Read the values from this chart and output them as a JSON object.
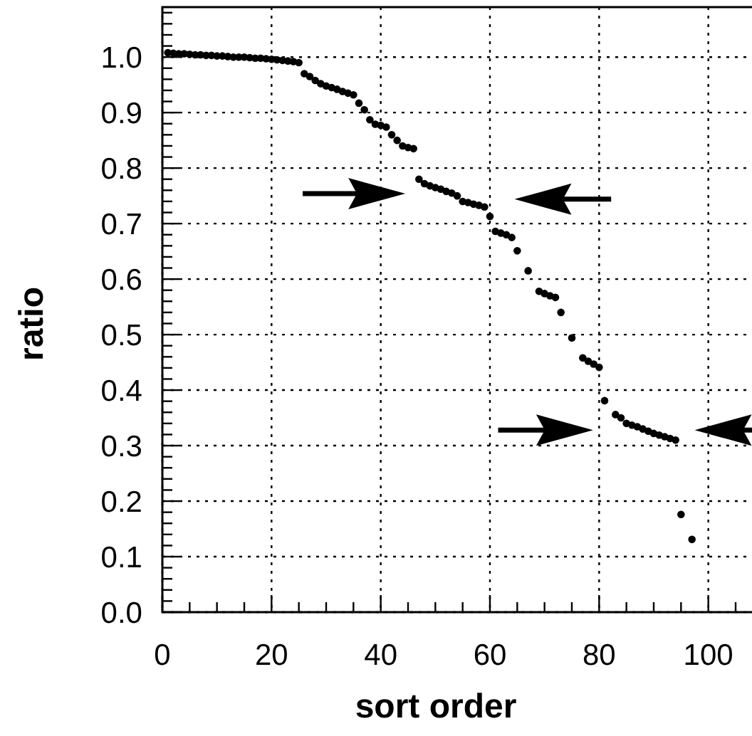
{
  "chart_data": {
    "type": "scatter",
    "xlabel": "sort order",
    "ylabel": "ratio",
    "marker": "circle",
    "grid": true,
    "xlim": [
      0,
      108
    ],
    "ylim": [
      0,
      1.09
    ],
    "xticks": [
      0,
      {
        "value": 5,
        "label": null
      },
      {
        "value": 10,
        "label": null
      },
      {
        "value": 15,
        "label": null
      },
      20,
      {
        "value": 25,
        "label": null
      },
      {
        "value": 30,
        "label": null
      },
      {
        "value": 35,
        "label": null
      },
      40,
      {
        "value": 45,
        "label": null
      },
      {
        "value": 50,
        "label": null
      },
      {
        "value": 55,
        "label": null
      },
      60,
      {
        "value": 65,
        "label": null
      },
      {
        "value": 70,
        "label": null
      },
      {
        "value": 75,
        "label": null
      },
      80,
      {
        "value": 85,
        "label": null
      },
      {
        "value": 90,
        "label": null
      },
      {
        "value": 95,
        "label": null
      },
      100,
      {
        "value": 105,
        "label": null
      }
    ],
    "yticks": [
      {
        "value": 0,
        "label": "0.0"
      },
      {
        "value": 0.02,
        "label": null
      },
      {
        "value": 0.04,
        "label": null
      },
      {
        "value": 0.06,
        "label": null
      },
      {
        "value": 0.08,
        "label": null
      },
      0.1,
      {
        "value": 0.12,
        "label": null
      },
      {
        "value": 0.14,
        "label": null
      },
      {
        "value": 0.16,
        "label": null
      },
      {
        "value": 0.18,
        "label": null
      },
      0.2,
      {
        "value": 0.22,
        "label": null
      },
      {
        "value": 0.24,
        "label": null
      },
      {
        "value": 0.26,
        "label": null
      },
      {
        "value": 0.28,
        "label": null
      },
      0.3,
      {
        "value": 0.32,
        "label": null
      },
      {
        "value": 0.34,
        "label": null
      },
      {
        "value": 0.36,
        "label": null
      },
      {
        "value": 0.38,
        "label": null
      },
      0.4,
      {
        "value": 0.42,
        "label": null
      },
      {
        "value": 0.44,
        "label": null
      },
      {
        "value": 0.46,
        "label": null
      },
      {
        "value": 0.48,
        "label": null
      },
      0.5,
      {
        "value": 0.52,
        "label": null
      },
      {
        "value": 0.54,
        "label": null
      },
      {
        "value": 0.56,
        "label": null
      },
      {
        "value": 0.58,
        "label": null
      },
      0.6,
      {
        "value": 0.62,
        "label": null
      },
      {
        "value": 0.64,
        "label": null
      },
      {
        "value": 0.66,
        "label": null
      },
      {
        "value": 0.68,
        "label": null
      },
      0.7,
      {
        "value": 0.72,
        "label": null
      },
      {
        "value": 0.74,
        "label": null
      },
      {
        "value": 0.76,
        "label": null
      },
      {
        "value": 0.78,
        "label": null
      },
      0.8,
      {
        "value": 0.82,
        "label": null
      },
      {
        "value": 0.84,
        "label": null
      },
      {
        "value": 0.86,
        "label": null
      },
      {
        "value": 0.88,
        "label": null
      },
      0.9,
      {
        "value": 0.92,
        "label": null
      },
      {
        "value": 0.94,
        "label": null
      },
      {
        "value": 0.96,
        "label": null
      },
      {
        "value": 0.98,
        "label": null
      },
      {
        "value": 1,
        "label": "1.0"
      },
      {
        "value": 1.02,
        "label": null
      },
      {
        "value": 1.04,
        "label": null
      },
      {
        "value": 1.06,
        "label": null
      },
      {
        "value": 1.08,
        "label": null
      }
    ],
    "series": [
      {
        "color": "#000000",
        "x": [
          1,
          2,
          3,
          4,
          5,
          6,
          7,
          8,
          9,
          10,
          11,
          12,
          13,
          14,
          15,
          16,
          17,
          18,
          19,
          20,
          21,
          22,
          23,
          24,
          25,
          26,
          27,
          28,
          29,
          30,
          31,
          32,
          33,
          34,
          35,
          36,
          37,
          38,
          39,
          40,
          41,
          42,
          43,
          44,
          45,
          46,
          47,
          48,
          49,
          50,
          51,
          52,
          53,
          54,
          55,
          56,
          57,
          58,
          59,
          60,
          61,
          62,
          63,
          64,
          65,
          67,
          69,
          70,
          71,
          72,
          73,
          75,
          77,
          78,
          79,
          80,
          81,
          83,
          84,
          85,
          86,
          87,
          88,
          89,
          90,
          91,
          92,
          93,
          94,
          95,
          97
        ],
        "values": [
          1.008,
          1.007,
          1.006,
          1.006,
          1.005,
          1.004,
          1.004,
          1.003,
          1.003,
          1.002,
          1.002,
          1.001,
          1.0,
          1.0,
          1.0,
          0.999,
          0.998,
          0.998,
          0.997,
          0.996,
          0.995,
          0.994,
          0.993,
          0.992,
          0.99,
          0.97,
          0.965,
          0.958,
          0.952,
          0.948,
          0.945,
          0.942,
          0.938,
          0.935,
          0.932,
          0.917,
          0.905,
          0.887,
          0.879,
          0.877,
          0.874,
          0.86,
          0.85,
          0.84,
          0.837,
          0.835,
          0.78,
          0.772,
          0.768,
          0.765,
          0.762,
          0.758,
          0.755,
          0.75,
          0.74,
          0.738,
          0.735,
          0.733,
          0.73,
          0.713,
          0.686,
          0.683,
          0.68,
          0.675,
          0.651,
          0.615,
          0.578,
          0.574,
          0.57,
          0.567,
          0.54,
          0.494,
          0.458,
          0.452,
          0.447,
          0.441,
          0.381,
          0.356,
          0.35,
          0.34,
          0.337,
          0.334,
          0.33,
          0.326,
          0.322,
          0.319,
          0.316,
          0.313,
          0.31,
          0.176,
          0.131
        ]
      }
    ]
  }
}
